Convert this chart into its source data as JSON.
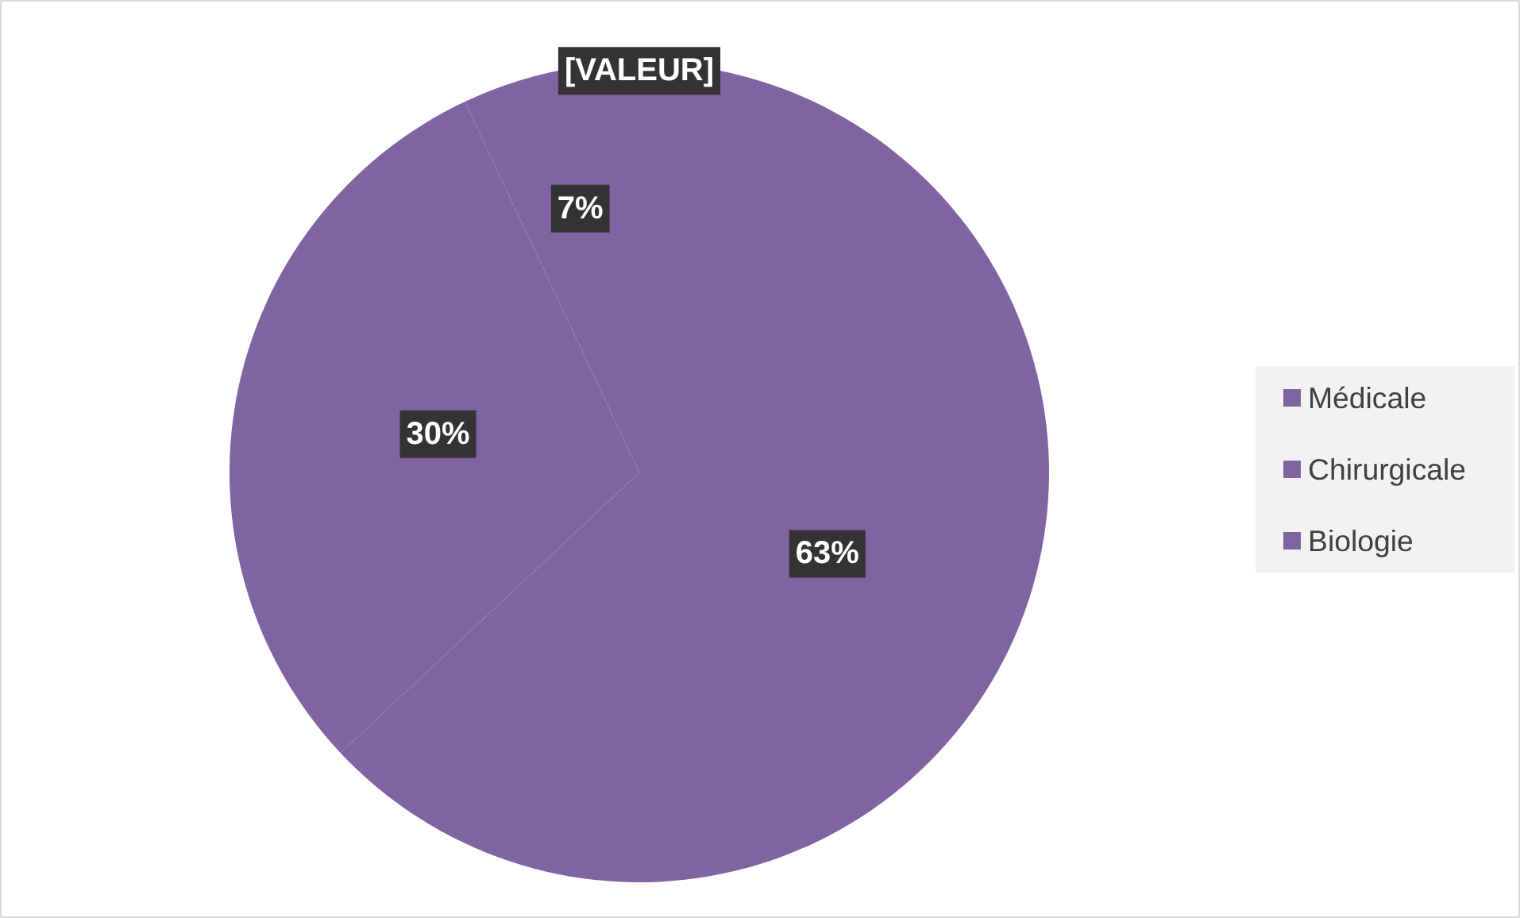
{
  "chart_data": {
    "type": "pie",
    "categories": [
      "Médicale",
      "Chirurgicale",
      "Biologie",
      null
    ],
    "values": [
      63,
      30,
      7,
      0
    ],
    "value_labels": [
      "63%",
      "30%",
      "7%",
      "[VALEUR]"
    ],
    "colors": [
      "#8064a2",
      "#8064a2",
      "#8064a2",
      "#8064a2"
    ],
    "legend": "right"
  }
}
